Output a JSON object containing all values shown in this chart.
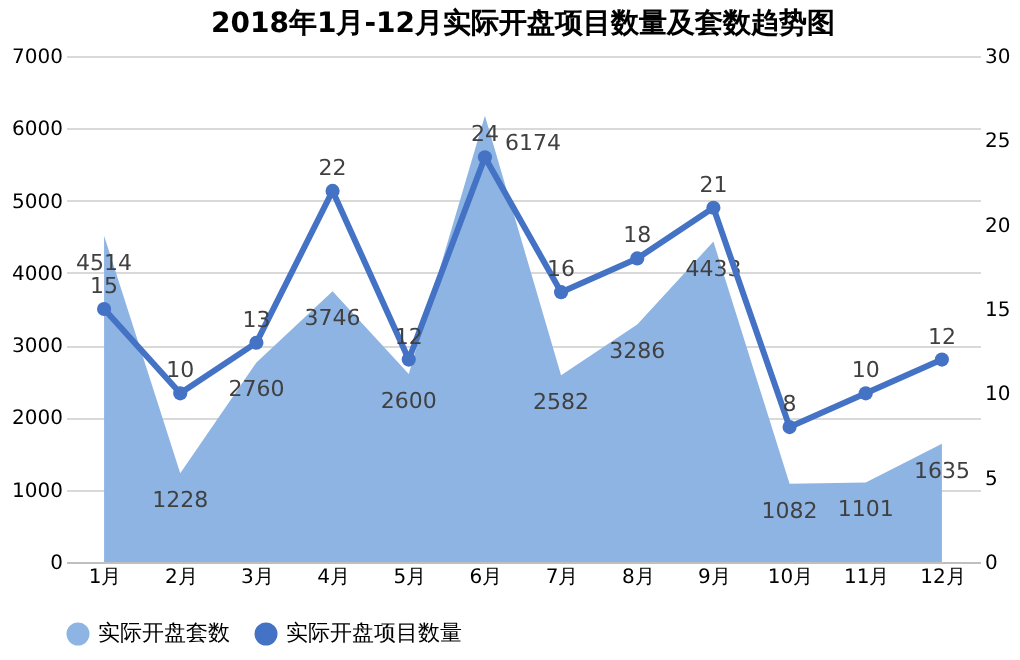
{
  "chart_data": {
    "type": "area",
    "title": "2018年1月-12月实际开盘项目数量及套数趋势图",
    "categories": [
      "1月",
      "2月",
      "3月",
      "4月",
      "5月",
      "6月",
      "7月",
      "8月",
      "9月",
      "10月",
      "11月",
      "12月"
    ],
    "series": [
      {
        "name": "实际开盘套数",
        "color": "#8eb4e3",
        "values": [
          4514,
          1228,
          2760,
          3746,
          2600,
          6174,
          2582,
          3286,
          4433,
          1082,
          1101,
          1635
        ]
      },
      {
        "name": "实际开盘项目数量",
        "type": "line",
        "axis": "y2",
        "marker": "circle",
        "color": "#4472c4",
        "values": [
          15,
          10,
          13,
          22,
          12,
          24,
          16,
          18,
          21,
          8,
          10,
          12
        ]
      }
    ],
    "ylim": [
      0,
      7000
    ],
    "yticks": [
      0,
      1000,
      2000,
      3000,
      4000,
      5000,
      6000,
      7000
    ],
    "y2lim": [
      0,
      30
    ],
    "y2ticks": [
      0,
      5,
      10,
      15,
      20,
      25,
      30
    ],
    "grid": "y",
    "legend": "bottom",
    "line_style": "solid",
    "data_labels": true
  }
}
